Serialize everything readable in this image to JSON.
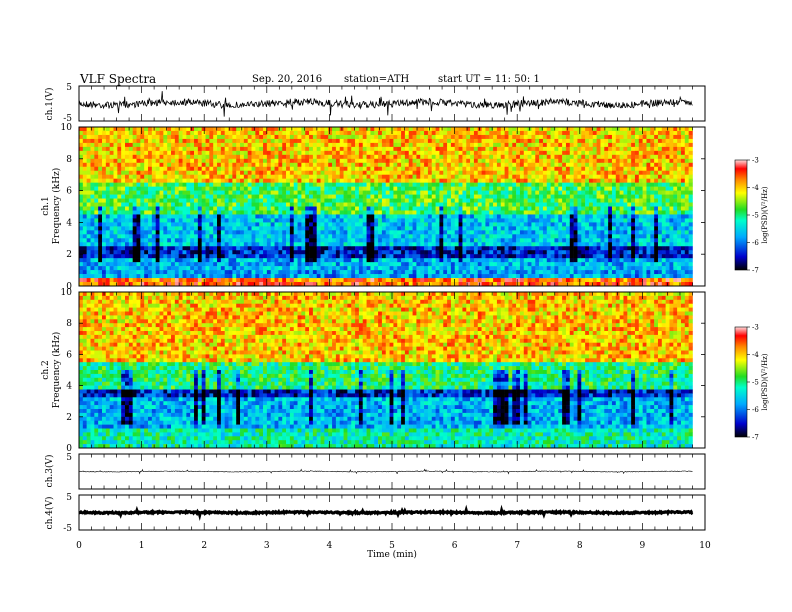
{
  "header": {
    "title": "VLF  Spectra",
    "date": "Sep. 20, 2016",
    "station": "station=ATH",
    "start": "start  UT =   11: 50: 1"
  },
  "chart_data": [
    {
      "type": "line",
      "panel": "ch1-waveform",
      "ylabel": "ch.1(V)",
      "xlim": [
        0,
        10
      ],
      "ylim": [
        -5,
        5
      ],
      "yticks": [
        "5",
        "-5"
      ],
      "color": "#000000"
    },
    {
      "type": "heatmap",
      "panel": "ch1-spectrogram",
      "ylabel": "ch.1\nFrequency (kHz)",
      "xlim": [
        0,
        10
      ],
      "ylim": [
        0,
        10
      ],
      "yticks": [
        "0",
        "2",
        "4",
        "6",
        "8",
        "10"
      ],
      "colorbar": {
        "label": "log(PSD)(V²/Hz)",
        "range": [
          -7,
          -3
        ],
        "ticks": [
          "-3",
          "-4",
          "-5",
          "-6",
          "-7"
        ]
      },
      "bands": [
        {
          "from": 0,
          "to": 0.4,
          "logpsd": -3.6
        },
        {
          "from": 0.4,
          "to": 0.9,
          "logpsd": -5.8
        },
        {
          "from": 0.9,
          "to": 1.8,
          "logpsd": -5.7
        },
        {
          "from": 1.8,
          "to": 2.6,
          "logpsd": -6.4
        },
        {
          "from": 2.6,
          "to": 4.5,
          "logpsd": -5.6
        },
        {
          "from": 4.5,
          "to": 6.5,
          "logpsd": -4.8
        },
        {
          "from": 6.5,
          "to": 10,
          "logpsd": -4.0
        }
      ]
    },
    {
      "type": "heatmap",
      "panel": "ch2-spectrogram",
      "ylabel": "ch.2\nFrequency (kHz)",
      "xlim": [
        0,
        10
      ],
      "ylim": [
        0,
        10
      ],
      "yticks": [
        "0",
        "2",
        "4",
        "6",
        "8",
        "10"
      ],
      "colorbar": {
        "label": "log(PSD)(V²/Hz)",
        "range": [
          -7,
          -3
        ],
        "ticks": [
          "-3",
          "-4",
          "-5",
          "-6",
          "-7"
        ]
      },
      "bands": [
        {
          "from": 0,
          "to": 1.2,
          "logpsd": -5.2
        },
        {
          "from": 1.2,
          "to": 3.2,
          "logpsd": -5.7
        },
        {
          "from": 3.2,
          "to": 3.8,
          "logpsd": -6.4
        },
        {
          "from": 3.8,
          "to": 5.5,
          "logpsd": -5.0
        },
        {
          "from": 5.5,
          "to": 10,
          "logpsd": -4.0
        }
      ]
    },
    {
      "type": "line",
      "panel": "ch3-waveform",
      "ylabel": "ch.3(V)",
      "xlim": [
        0,
        10
      ],
      "ylim": [
        -5,
        5
      ],
      "yticks": [
        "5",
        ""
      ],
      "color": "#000000"
    },
    {
      "type": "line",
      "panel": "ch4-waveform",
      "ylabel": "ch.4(V)",
      "xlim": [
        0,
        10
      ],
      "ylim": [
        -5,
        5
      ],
      "yticks": [
        "5",
        "-5"
      ],
      "xlabel": "Time  (min)",
      "xticks": [
        "0",
        "1",
        "2",
        "3",
        "4",
        "5",
        "6",
        "7",
        "8",
        "9",
        "10"
      ],
      "color": "#000000"
    }
  ]
}
